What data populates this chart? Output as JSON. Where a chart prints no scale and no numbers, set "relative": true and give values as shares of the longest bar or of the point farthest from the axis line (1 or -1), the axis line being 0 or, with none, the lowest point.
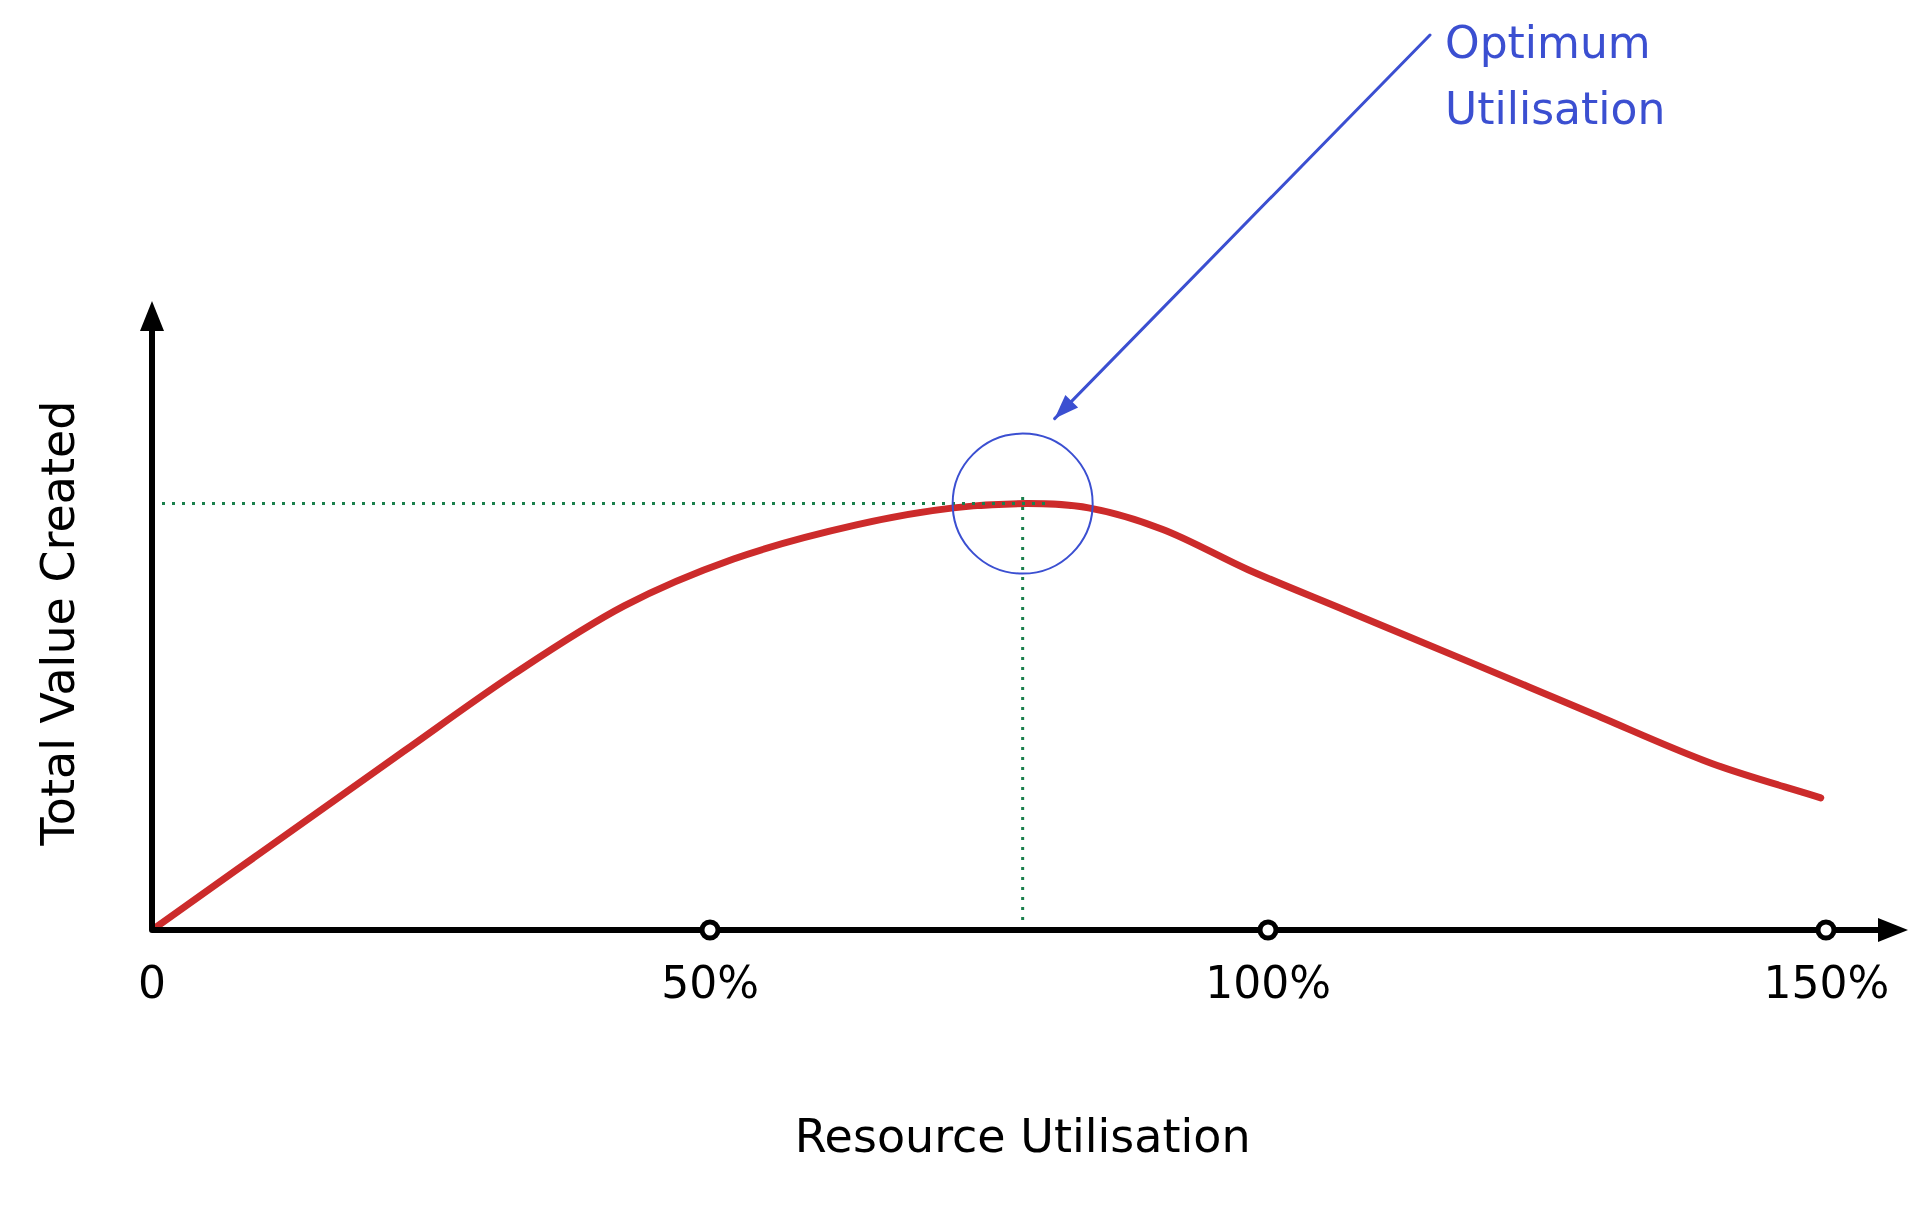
{
  "chart_data": {
    "type": "line",
    "relative": true,
    "xlabel": "Resource Utilisation",
    "ylabel": "Total Value Created",
    "xlim": [
      0,
      156
    ],
    "xticks": [
      {
        "value": 0,
        "label": "0"
      },
      {
        "value": 50,
        "label": "50%"
      },
      {
        "value": 100,
        "label": "100%"
      },
      {
        "value": 150,
        "label": "150%"
      }
    ],
    "tick_labels": "x",
    "grid": false,
    "legend": false,
    "marker": "none",
    "line_style": "solid",
    "series": [
      {
        "color": "#cc2b2b",
        "x": [
          0,
          22.6,
          32.4,
          42.3,
          52.1,
          63.1,
          71.8,
          78.4,
          83.9,
          90.5,
          98.2,
          106.9,
          117.9,
          128.8,
          139.8,
          149.5
        ],
        "values": [
          0,
          0.42,
          0.6,
          0.76,
          0.87,
          0.95,
          0.99,
          1,
          0.99,
          0.94,
          0.845,
          0.75,
          0.63,
          0.51,
          0.39,
          0.31
        ]
      }
    ],
    "ref_lines": [
      {
        "axis": "x",
        "value": 78,
        "color": "#1a7f4b",
        "line_style": "dotted"
      },
      {
        "axis": "y",
        "value": 1,
        "color": "#1a7f4b",
        "line_style": "dotted"
      }
    ],
    "annotations": [
      "Optimum Utilisation"
    ]
  }
}
